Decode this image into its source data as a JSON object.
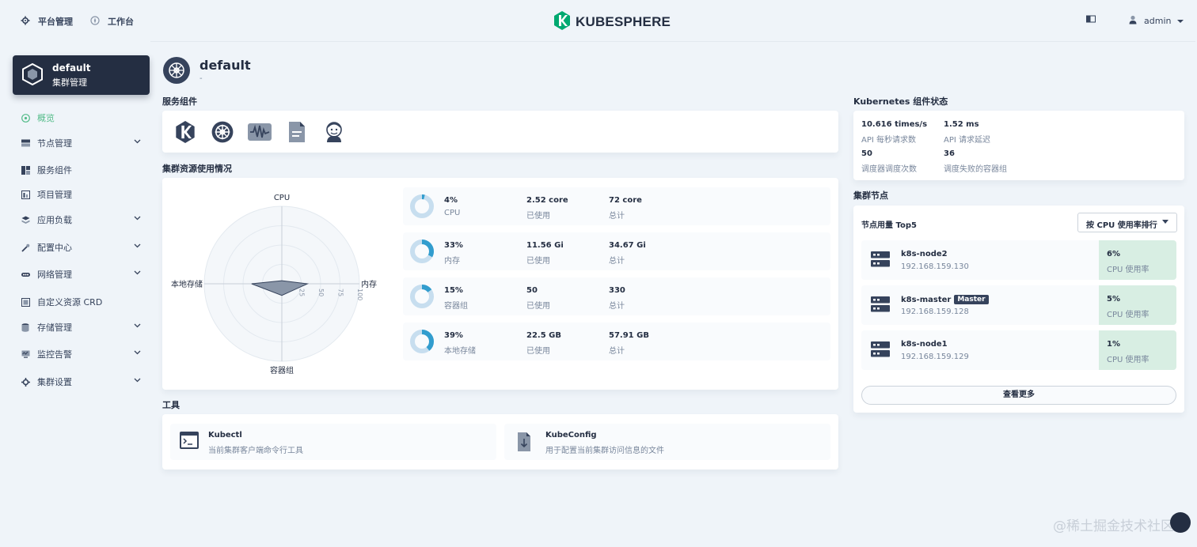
{
  "header": {
    "nav": [
      {
        "label": "平台管理",
        "icon": "gear-icon"
      },
      {
        "label": "工作台",
        "icon": "compass-icon"
      }
    ],
    "brand": "KUBESPHERE",
    "user": "admin"
  },
  "sidebar": {
    "cluster_name": "default",
    "cluster_sub": "集群管理",
    "items": [
      {
        "label": "概览",
        "icon": "dashboard-icon",
        "expandable": false,
        "active": true
      },
      {
        "label": "节点管理",
        "icon": "node-icon",
        "expandable": true
      },
      {
        "label": "服务组件",
        "icon": "component-icon",
        "expandable": false
      },
      {
        "label": "项目管理",
        "icon": "project-icon",
        "expandable": false
      },
      {
        "label": "应用负载",
        "icon": "appload-icon",
        "expandable": true
      },
      {
        "label": "配置中心",
        "icon": "config-icon",
        "expandable": true
      },
      {
        "label": "网络管理",
        "icon": "network-icon",
        "expandable": true
      },
      {
        "label": "自定义资源 CRD",
        "icon": "crd-icon",
        "expandable": false
      },
      {
        "label": "存储管理",
        "icon": "storage-icon",
        "expandable": true
      },
      {
        "label": "监控告警",
        "icon": "monitor-icon",
        "expandable": true
      },
      {
        "label": "集群设置",
        "icon": "settings-icon",
        "expandable": true
      }
    ]
  },
  "page": {
    "title": "default",
    "subtitle": "-"
  },
  "sections": {
    "services": "服务组件",
    "resources": "集群资源使用情况",
    "tools": "工具",
    "k8s_status": "Kubernetes 组件状态",
    "nodes": "集群节点"
  },
  "radar": {
    "axes": [
      "CPU",
      "内存",
      "容器组",
      "本地存储"
    ],
    "ticks": [
      "25",
      "50",
      "75",
      "100"
    ],
    "values": [
      4,
      33,
      15,
      39
    ]
  },
  "resources": [
    {
      "percent": "4%",
      "name": "CPU",
      "used": "2.52 core",
      "used_label": "已使用",
      "total": "72 core",
      "total_label": "总计",
      "ratio": 0.04
    },
    {
      "percent": "33%",
      "name": "内存",
      "used": "11.56 Gi",
      "used_label": "已使用",
      "total": "34.67 Gi",
      "total_label": "总计",
      "ratio": 0.33
    },
    {
      "percent": "15%",
      "name": "容器组",
      "used": "50",
      "used_label": "已使用",
      "total": "330",
      "total_label": "总计",
      "ratio": 0.15
    },
    {
      "percent": "39%",
      "name": "本地存储",
      "used": "22.5 GB",
      "used_label": "已使用",
      "total": "57.91 GB",
      "total_label": "总计",
      "ratio": 0.39
    }
  ],
  "tools": [
    {
      "name": "Kubectl",
      "desc": "当前集群客户端命令行工具",
      "icon": "terminal-icon"
    },
    {
      "name": "KubeConfig",
      "desc": "用于配置当前集群访问信息的文件",
      "icon": "download-file-icon"
    }
  ],
  "k8s_status": [
    {
      "value": "10.616 times/s",
      "label": "API 每秒请求数"
    },
    {
      "value": "1.52 ms",
      "label": "API 请求延迟"
    },
    {
      "value": "50",
      "label": "调度器调度次数"
    },
    {
      "value": "36",
      "label": "调度失败的容器组"
    }
  ],
  "nodes": {
    "title": "节点用量 Top5",
    "sort_label": "按 CPU 使用率排行",
    "more_label": "查看更多",
    "list": [
      {
        "name": "k8s-node2",
        "ip": "192.168.159.130",
        "badge": "",
        "usage": "6%",
        "usage_label": "CPU 使用率"
      },
      {
        "name": "k8s-master",
        "ip": "192.168.159.128",
        "badge": "Master",
        "usage": "5%",
        "usage_label": "CPU 使用率"
      },
      {
        "name": "k8s-node1",
        "ip": "192.168.159.129",
        "badge": "",
        "usage": "1%",
        "usage_label": "CPU 使用率"
      }
    ]
  },
  "watermark": "@稀土掘金技术社区",
  "colors": {
    "accent": "#55bc8a",
    "dark": "#242e42",
    "ring": "#329dce",
    "ring_bg": "#c7deef",
    "usage_bg": "#d8eee3"
  }
}
